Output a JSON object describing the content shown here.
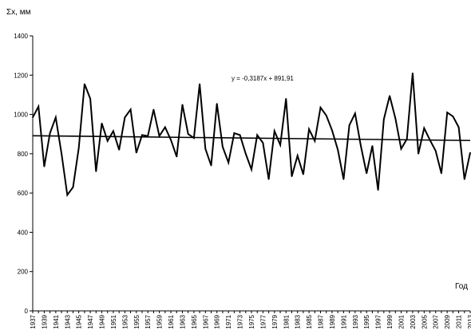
{
  "chart_data": {
    "type": "line",
    "title": "",
    "ylabel": "Σx, мм",
    "xlabel": "Год",
    "ylim": [
      0,
      1400
    ],
    "xlim": [
      1937,
      2013
    ],
    "y_ticks": [
      0,
      200,
      400,
      600,
      800,
      1000,
      1200,
      1400
    ],
    "x_tick_labels": [
      "1937",
      "1939",
      "1941",
      "1943",
      "1945",
      "1947",
      "1949",
      "1951",
      "1953",
      "1955",
      "1957",
      "1959",
      "1961",
      "1963",
      "1965",
      "1967",
      "1969",
      "1971",
      "1973",
      "1975",
      "1977",
      "1979",
      "1981",
      "1983",
      "1985",
      "1987",
      "1989",
      "1991",
      "1993",
      "1995",
      "1997",
      "1999",
      "2001",
      "2003",
      "2005",
      "2007",
      "2009",
      "2011",
      "2013"
    ],
    "grid": false,
    "series": [
      {
        "color": "#000000",
        "x": [
          1937,
          1938,
          1939,
          1940,
          1941,
          1942,
          1943,
          1944,
          1945,
          1946,
          1947,
          1948,
          1949,
          1950,
          1951,
          1952,
          1953,
          1954,
          1955,
          1956,
          1957,
          1958,
          1959,
          1960,
          1961,
          1962,
          1963,
          1964,
          1965,
          1966,
          1967,
          1968,
          1969,
          1970,
          1971,
          1972,
          1973,
          1974,
          1975,
          1976,
          1977,
          1978,
          1979,
          1980,
          1981,
          1982,
          1983,
          1984,
          1985,
          1986,
          1987,
          1988,
          1989,
          1990,
          1991,
          1992,
          1993,
          1994,
          1995,
          1996,
          1997,
          1998,
          1999,
          2000,
          2001,
          2002,
          2003,
          2004,
          2005,
          2006,
          2007,
          2008,
          2009,
          2010,
          2011,
          2012,
          2013
        ],
        "values": [
          985,
          1040,
          735,
          905,
          985,
          800,
          590,
          630,
          830,
          1155,
          1080,
          710,
          955,
          865,
          915,
          820,
          985,
          1025,
          805,
          895,
          890,
          1025,
          890,
          935,
          870,
          785,
          1050,
          900,
          880,
          1155,
          825,
          740,
          1055,
          835,
          755,
          905,
          895,
          800,
          720,
          895,
          855,
          670,
          915,
          845,
          1080,
          685,
          790,
          695,
          925,
          865,
          1035,
          995,
          920,
          820,
          670,
          945,
          1005,
          840,
          700,
          840,
          615,
          975,
          1095,
          980,
          825,
          875,
          1210,
          800,
          930,
          870,
          815,
          700,
          1010,
          990,
          935,
          670,
          805
        ]
      }
    ],
    "trendline": {
      "label": "y = -0,3187x + 891,91",
      "slope": -0.3187,
      "intercept": 891.91
    }
  }
}
